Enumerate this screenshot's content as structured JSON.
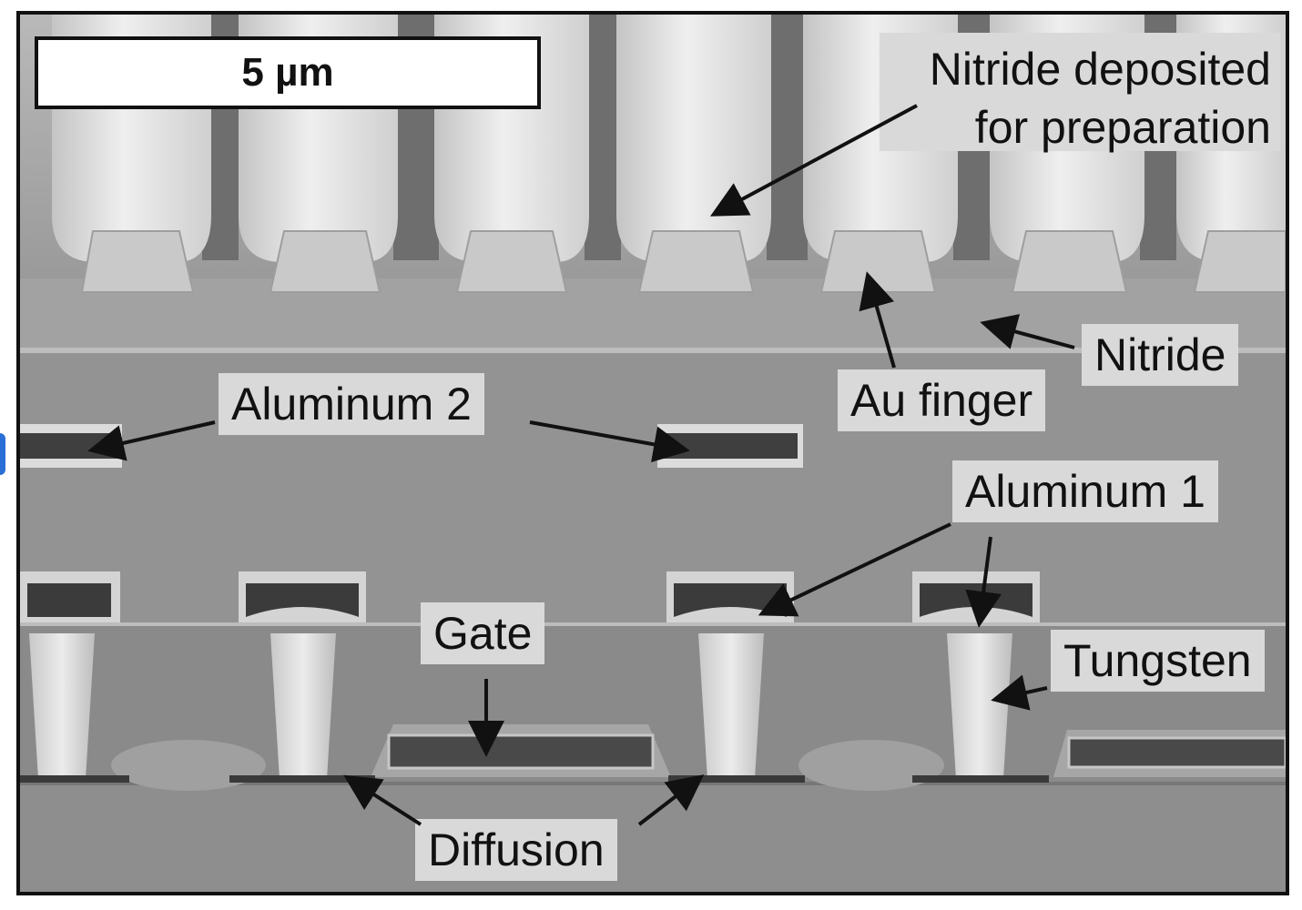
{
  "scale_bar": {
    "text": "5 µm"
  },
  "labels": {
    "nitride_deposited_line1": "Nitride deposited",
    "nitride_deposited_line2": "for preparation",
    "nitride": "Nitride",
    "au_finger": "Au finger",
    "aluminum_2": "Aluminum 2",
    "aluminum_1": "Aluminum 1",
    "gate": "Gate",
    "tungsten": "Tungsten",
    "diffusion": "Diffusion"
  },
  "colors": {
    "background": "#8e8e8e",
    "label_box": "#d9d9d9",
    "outline": "#111111"
  }
}
